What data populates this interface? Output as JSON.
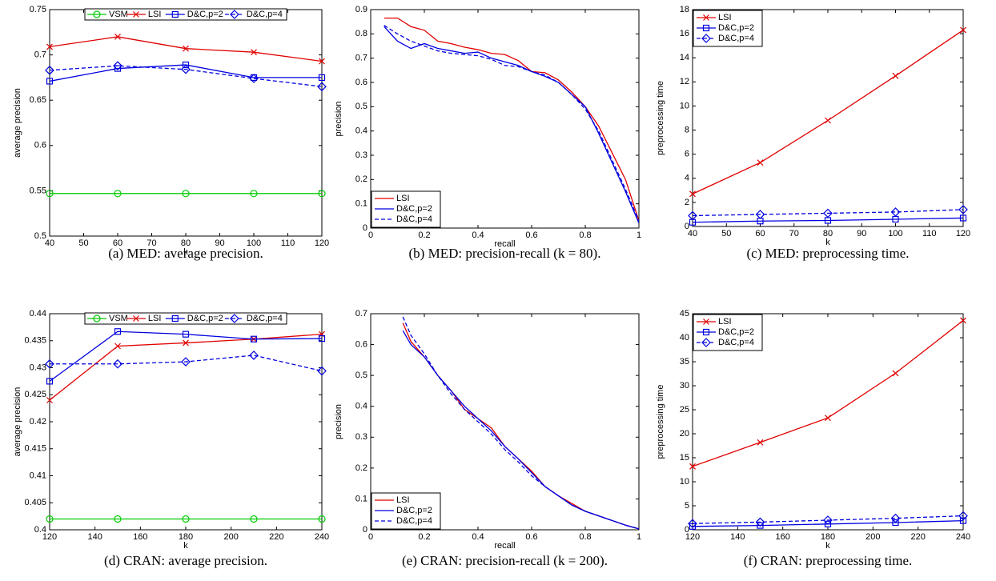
{
  "chart_data": [
    {
      "type": "line",
      "caption": "(a) MED: average precision.",
      "xlabel": "k",
      "ylabel": "average precision",
      "x": [
        40,
        60,
        80,
        100,
        120
      ],
      "xlim": [
        40,
        120
      ],
      "xticks": [
        40,
        50,
        60,
        70,
        80,
        90,
        100,
        110,
        120
      ],
      "ylim": [
        0.5,
        0.75
      ],
      "yticks": [
        0.5,
        0.55,
        0.6,
        0.65,
        0.7,
        0.75
      ],
      "legend": "top",
      "series": [
        {
          "name": "VSM",
          "color": "#00cc00",
          "marker": "o",
          "dashed": false,
          "values": [
            0.547,
            0.547,
            0.547,
            0.547,
            0.547
          ]
        },
        {
          "name": "LSI",
          "color": "#e00000",
          "marker": "x",
          "dashed": false,
          "values": [
            0.709,
            0.72,
            0.707,
            0.703,
            0.693
          ]
        },
        {
          "name": "D&C,p=2",
          "color": "#0000e0",
          "marker": "s",
          "dashed": false,
          "values": [
            0.671,
            0.685,
            0.689,
            0.675,
            0.675
          ]
        },
        {
          "name": "D&C,p=4",
          "color": "#0000e0",
          "marker": "d",
          "dashed": true,
          "values": [
            0.683,
            0.688,
            0.684,
            0.674,
            0.665
          ]
        }
      ]
    },
    {
      "type": "line",
      "caption": "(b) MED: precision-recall (k = 80).",
      "xlabel": "recall",
      "ylabel": "precision",
      "x": [
        0.05,
        0.1,
        0.15,
        0.2,
        0.25,
        0.3,
        0.35,
        0.4,
        0.45,
        0.5,
        0.55,
        0.6,
        0.65,
        0.7,
        0.75,
        0.8,
        0.85,
        0.9,
        0.95,
        1.0
      ],
      "xlim": [
        0,
        1
      ],
      "xticks": [
        0,
        0.2,
        0.4,
        0.6,
        0.8,
        1
      ],
      "ylim": [
        0,
        0.9
      ],
      "yticks": [
        0,
        0.1,
        0.2,
        0.3,
        0.4,
        0.5,
        0.6,
        0.7,
        0.8,
        0.9
      ],
      "legend": "bottom-left",
      "series": [
        {
          "name": "LSI",
          "color": "#e00000",
          "marker": "none",
          "dashed": false,
          "values": [
            0.865,
            0.865,
            0.83,
            0.815,
            0.77,
            0.76,
            0.745,
            0.735,
            0.72,
            0.715,
            0.69,
            0.645,
            0.64,
            0.61,
            0.56,
            0.5,
            0.42,
            0.31,
            0.2,
            0.03
          ]
        },
        {
          "name": "D&C,p=2",
          "color": "#0000e0",
          "marker": "none",
          "dashed": false,
          "values": [
            0.83,
            0.77,
            0.74,
            0.76,
            0.74,
            0.73,
            0.72,
            0.725,
            0.7,
            0.685,
            0.67,
            0.645,
            0.625,
            0.6,
            0.55,
            0.5,
            0.39,
            0.27,
            0.15,
            0.02
          ]
        },
        {
          "name": "D&C,p=4",
          "color": "#0000e0",
          "marker": "none",
          "dashed": true,
          "values": [
            0.835,
            0.8,
            0.77,
            0.75,
            0.73,
            0.72,
            0.715,
            0.71,
            0.695,
            0.67,
            0.665,
            0.645,
            0.63,
            0.6,
            0.55,
            0.49,
            0.4,
            0.28,
            0.16,
            0.03
          ]
        }
      ]
    },
    {
      "type": "line",
      "caption": "(c) MED: preprocessing time.",
      "xlabel": "k",
      "ylabel": "preprocessing time",
      "x": [
        40,
        60,
        80,
        100,
        120
      ],
      "xlim": [
        40,
        120
      ],
      "xticks": [
        40,
        50,
        60,
        70,
        80,
        90,
        100,
        110,
        120
      ],
      "ylim": [
        0,
        18
      ],
      "yticks": [
        0,
        2,
        4,
        6,
        8,
        10,
        12,
        14,
        16,
        18
      ],
      "legend": "top-left",
      "series": [
        {
          "name": "LSI",
          "color": "#e00000",
          "marker": "x",
          "dashed": false,
          "values": [
            2.7,
            5.3,
            8.8,
            12.5,
            16.3
          ]
        },
        {
          "name": "D&C,p=2",
          "color": "#0000e0",
          "marker": "s",
          "dashed": false,
          "values": [
            0.35,
            0.45,
            0.5,
            0.6,
            0.7
          ]
        },
        {
          "name": "D&C,p=4",
          "color": "#0000e0",
          "marker": "d",
          "dashed": true,
          "values": [
            0.9,
            1.0,
            1.1,
            1.2,
            1.4
          ]
        }
      ]
    },
    {
      "type": "line",
      "caption": "(d) CRAN: average precision.",
      "xlabel": "k",
      "ylabel": "average precision",
      "x": [
        120,
        150,
        180,
        210,
        240
      ],
      "xlim": [
        120,
        240
      ],
      "xticks": [
        120,
        140,
        160,
        180,
        200,
        220,
        240
      ],
      "ylim": [
        0.4,
        0.44
      ],
      "yticks": [
        0.4,
        0.405,
        0.41,
        0.415,
        0.42,
        0.425,
        0.43,
        0.435,
        0.44
      ],
      "legend": "top",
      "series": [
        {
          "name": "VSM",
          "color": "#00cc00",
          "marker": "o",
          "dashed": false,
          "values": [
            0.402,
            0.402,
            0.402,
            0.402,
            0.402
          ]
        },
        {
          "name": "LSI",
          "color": "#e00000",
          "marker": "x",
          "dashed": false,
          "values": [
            0.424,
            0.434,
            0.4346,
            0.4353,
            0.4362
          ]
        },
        {
          "name": "D&C,p=2",
          "color": "#0000e0",
          "marker": "s",
          "dashed": false,
          "values": [
            0.4275,
            0.4367,
            0.4362,
            0.4353,
            0.4354
          ]
        },
        {
          "name": "D&C,p=4",
          "color": "#0000e0",
          "marker": "d",
          "dashed": true,
          "values": [
            0.4307,
            0.4307,
            0.4311,
            0.4323,
            0.4294
          ]
        }
      ]
    },
    {
      "type": "line",
      "caption": "(e) CRAN: precision-recall (k = 200).",
      "xlabel": "recall",
      "ylabel": "precision",
      "x": [
        0.12,
        0.15,
        0.2,
        0.25,
        0.3,
        0.35,
        0.4,
        0.45,
        0.5,
        0.55,
        0.6,
        0.65,
        0.7,
        0.75,
        0.8,
        0.85,
        0.9,
        0.95,
        1.0
      ],
      "xlim": [
        0,
        1
      ],
      "xticks": [
        0,
        0.2,
        0.4,
        0.6,
        0.8,
        1
      ],
      "ylim": [
        0,
        0.7
      ],
      "yticks": [
        0,
        0.1,
        0.2,
        0.3,
        0.4,
        0.5,
        0.6,
        0.7
      ],
      "legend": "bottom-left",
      "series": [
        {
          "name": "LSI",
          "color": "#e00000",
          "marker": "none",
          "dashed": false,
          "values": [
            0.67,
            0.61,
            0.56,
            0.5,
            0.45,
            0.39,
            0.36,
            0.33,
            0.27,
            0.23,
            0.19,
            0.14,
            0.11,
            0.085,
            0.06,
            0.045,
            0.03,
            0.015,
            0.003
          ]
        },
        {
          "name": "D&C,p=2",
          "color": "#0000e0",
          "marker": "none",
          "dashed": false,
          "values": [
            0.645,
            0.6,
            0.56,
            0.5,
            0.45,
            0.4,
            0.36,
            0.32,
            0.27,
            0.23,
            0.185,
            0.14,
            0.11,
            0.08,
            0.06,
            0.045,
            0.03,
            0.015,
            0.003
          ]
        },
        {
          "name": "D&C,p=4",
          "color": "#0000e0",
          "marker": "none",
          "dashed": true,
          "values": [
            0.69,
            0.63,
            0.57,
            0.5,
            0.44,
            0.39,
            0.35,
            0.31,
            0.26,
            0.22,
            0.175,
            0.14,
            0.11,
            0.08,
            0.06,
            0.045,
            0.03,
            0.015,
            0.003
          ]
        }
      ]
    },
    {
      "type": "line",
      "caption": "(f) CRAN: preprocessing time.",
      "xlabel": "k",
      "ylabel": "preprocessing time",
      "x": [
        120,
        150,
        180,
        210,
        240
      ],
      "xlim": [
        120,
        240
      ],
      "xticks": [
        120,
        140,
        160,
        180,
        200,
        220,
        240
      ],
      "ylim": [
        0,
        45
      ],
      "yticks": [
        0,
        5,
        10,
        15,
        20,
        25,
        30,
        35,
        40,
        45
      ],
      "legend": "top-left",
      "series": [
        {
          "name": "LSI",
          "color": "#e00000",
          "marker": "x",
          "dashed": false,
          "values": [
            13.2,
            18.2,
            23.3,
            32.6,
            43.6
          ]
        },
        {
          "name": "D&C,p=2",
          "color": "#0000e0",
          "marker": "s",
          "dashed": false,
          "values": [
            0.7,
            0.9,
            1.2,
            1.5,
            1.9
          ]
        },
        {
          "name": "D&C,p=4",
          "color": "#0000e0",
          "marker": "d",
          "dashed": true,
          "values": [
            1.3,
            1.6,
            2.0,
            2.4,
            2.9
          ]
        }
      ]
    }
  ]
}
